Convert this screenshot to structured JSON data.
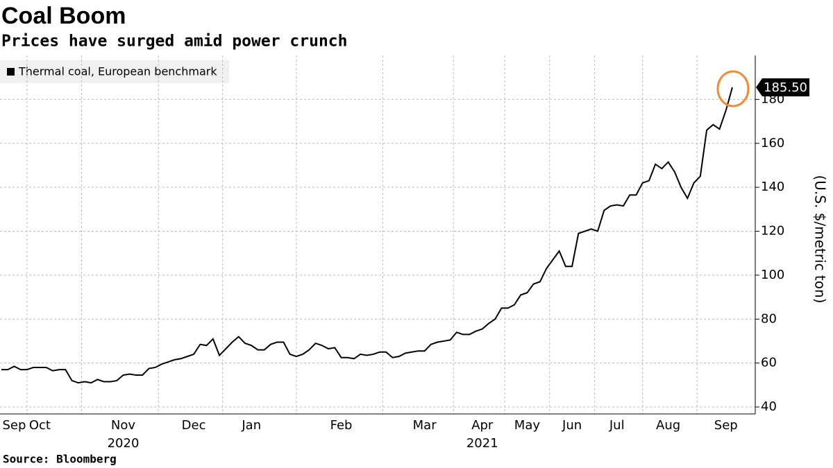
{
  "chart_data": {
    "type": "line",
    "title": "Coal Boom",
    "subtitle": "Prices have surged amid power crunch",
    "source": "Source: Bloomberg",
    "y_axis_label": "(U.S. $/metric ton)",
    "categories": [
      null,
      null,
      "Sep",
      null,
      null,
      null,
      "Oct",
      null,
      null,
      null,
      null,
      null,
      null,
      null,
      null,
      null,
      null,
      null,
      null,
      "Nov",
      null,
      null,
      null,
      null,
      null,
      null,
      null,
      null,
      null,
      null,
      "Dec",
      null,
      null,
      null,
      null,
      null,
      null,
      null,
      null,
      "Jan",
      null,
      null,
      null,
      null,
      null,
      null,
      null,
      null,
      null,
      null,
      null,
      null,
      null,
      "Feb",
      null,
      null,
      null,
      null,
      null,
      null,
      null,
      null,
      null,
      null,
      null,
      null,
      "Mar",
      null,
      null,
      null,
      null,
      null,
      null,
      null,
      null,
      "Apr",
      null,
      null,
      null,
      null,
      null,
      null,
      "May",
      null,
      null,
      null,
      null,
      null,
      null,
      "Jun",
      null,
      null,
      null,
      null,
      null,
      null,
      "Jul",
      null,
      null,
      null,
      null,
      null,
      null,
      null,
      "Aug",
      null,
      null,
      null,
      null,
      null,
      null,
      null,
      null,
      "Sep",
      null
    ],
    "categories_line2": [
      null,
      null,
      null,
      null,
      null,
      null,
      null,
      null,
      null,
      null,
      null,
      null,
      null,
      null,
      null,
      null,
      null,
      null,
      null,
      "2020",
      null,
      null,
      null,
      null,
      null,
      null,
      null,
      null,
      null,
      null,
      null,
      null,
      null,
      null,
      null,
      null,
      null,
      null,
      null,
      null,
      null,
      null,
      null,
      null,
      null,
      null,
      null,
      null,
      null,
      null,
      null,
      null,
      null,
      null,
      null,
      null,
      null,
      null,
      null,
      null,
      null,
      null,
      null,
      null,
      null,
      null,
      null,
      null,
      null,
      null,
      null,
      null,
      null,
      null,
      null,
      "2021",
      null,
      null,
      null,
      null,
      null,
      null,
      null,
      null,
      null,
      null,
      null,
      null,
      null,
      null,
      null,
      null,
      null,
      null,
      null,
      null,
      null,
      null,
      null,
      null,
      null,
      null,
      null,
      null,
      null,
      null,
      null,
      null,
      null,
      null,
      null,
      null,
      null,
      null,
      null
    ],
    "series": [
      {
        "name": "Thermal coal, European benchmark",
        "color": "#000000",
        "values": [
          57,
          57,
          58.5,
          57,
          57,
          58,
          58,
          58,
          56.5,
          57,
          57,
          52,
          51,
          51.5,
          51,
          52.5,
          51.5,
          51.5,
          52,
          54.5,
          55,
          54.5,
          54.5,
          57.5,
          58,
          59.5,
          60.5,
          61.5,
          62,
          63,
          64,
          68.5,
          68,
          71,
          63.5,
          66.5,
          69.5,
          72,
          69,
          68,
          66,
          66,
          68.5,
          69.5,
          69.5,
          64,
          63,
          64,
          66,
          69,
          68,
          66.5,
          67,
          62.5,
          62.5,
          62,
          64,
          63.5,
          64,
          65,
          65,
          62.5,
          63,
          64.5,
          65,
          65.5,
          65.5,
          68.5,
          69.5,
          70,
          70.5,
          74,
          73,
          73,
          74.5,
          75.5,
          78,
          80,
          85,
          85,
          86.5,
          91,
          92,
          96,
          97,
          103,
          107,
          111,
          104,
          104,
          119,
          120,
          121,
          120,
          129.5,
          131.5,
          132,
          131.5,
          136.5,
          136.5,
          142,
          143,
          150.5,
          148.5,
          151.5,
          147,
          140,
          135,
          142,
          145,
          166,
          168.5,
          166.5,
          175,
          185.5
        ],
        "value_labels": [
          null,
          null,
          null,
          null,
          null,
          null,
          null,
          null,
          null,
          null,
          null,
          null,
          null,
          null,
          null,
          null,
          null,
          null,
          null,
          null,
          null,
          null,
          null,
          null,
          null,
          null,
          null,
          null,
          null,
          null,
          null,
          null,
          null,
          null,
          null,
          null,
          null,
          null,
          null,
          null,
          null,
          null,
          null,
          null,
          null,
          null,
          null,
          null,
          null,
          null,
          null,
          null,
          null,
          null,
          null,
          null,
          null,
          null,
          null,
          null,
          null,
          null,
          null,
          null,
          null,
          null,
          null,
          null,
          null,
          null,
          null,
          null,
          null,
          null,
          null,
          null,
          null,
          null,
          null,
          null,
          null,
          null,
          null,
          null,
          null,
          null,
          null,
          null,
          null,
          null,
          null,
          null,
          null,
          null,
          null,
          null,
          null,
          null,
          null,
          null,
          null,
          null,
          null,
          null,
          null,
          null,
          null,
          null,
          null,
          null,
          null,
          null,
          null,
          null,
          "185.50"
        ]
      }
    ],
    "ylim": [
      40,
      200
    ],
    "yticks": [
      40,
      60,
      80,
      100,
      120,
      140,
      160,
      180
    ],
    "grid": true,
    "legend": "top-left",
    "highlight_color": "#f28a30"
  }
}
